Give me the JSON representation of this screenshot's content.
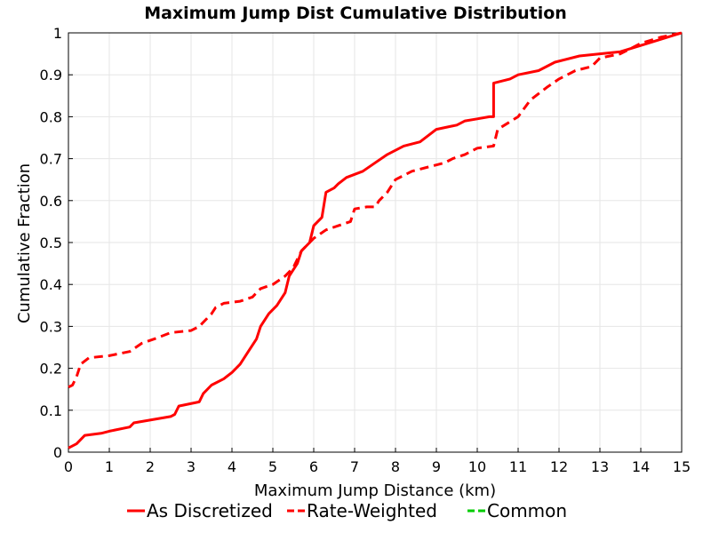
{
  "chart_data": {
    "type": "line",
    "title": "Maximum Jump Dist Cumulative Distribution",
    "xlabel": "Maximum Jump Distance (km)",
    "ylabel": "Cumulative Fraction",
    "xlim": [
      0,
      15
    ],
    "ylim": [
      0,
      1
    ],
    "xticks": [
      "0",
      "1",
      "2",
      "3",
      "4",
      "5",
      "6",
      "7",
      "8",
      "9",
      "10",
      "11",
      "12",
      "13",
      "14",
      "15"
    ],
    "yticks": [
      "0",
      "0.1",
      "0.2",
      "0.3",
      "0.4",
      "0.5",
      "0.6",
      "0.7",
      "0.8",
      "0.9",
      "1"
    ],
    "grid": true,
    "legend_position": "bottom",
    "series": [
      {
        "name": "As Discretized",
        "color": "#ff0000",
        "dash": "solid",
        "points": [
          [
            0.0,
            0.01
          ],
          [
            0.2,
            0.02
          ],
          [
            0.4,
            0.04
          ],
          [
            0.8,
            0.045
          ],
          [
            1.0,
            0.05
          ],
          [
            1.5,
            0.06
          ],
          [
            1.6,
            0.07
          ],
          [
            1.9,
            0.075
          ],
          [
            2.5,
            0.085
          ],
          [
            2.6,
            0.09
          ],
          [
            2.7,
            0.11
          ],
          [
            3.2,
            0.12
          ],
          [
            3.3,
            0.14
          ],
          [
            3.5,
            0.16
          ],
          [
            3.8,
            0.175
          ],
          [
            4.0,
            0.19
          ],
          [
            4.2,
            0.21
          ],
          [
            4.4,
            0.24
          ],
          [
            4.6,
            0.27
          ],
          [
            4.7,
            0.3
          ],
          [
            4.9,
            0.33
          ],
          [
            5.1,
            0.35
          ],
          [
            5.3,
            0.38
          ],
          [
            5.4,
            0.42
          ],
          [
            5.6,
            0.45
          ],
          [
            5.7,
            0.48
          ],
          [
            5.9,
            0.5
          ],
          [
            6.0,
            0.54
          ],
          [
            6.2,
            0.56
          ],
          [
            6.3,
            0.62
          ],
          [
            6.5,
            0.63
          ],
          [
            6.6,
            0.64
          ],
          [
            6.8,
            0.655
          ],
          [
            7.2,
            0.67
          ],
          [
            7.5,
            0.69
          ],
          [
            7.8,
            0.71
          ],
          [
            8.2,
            0.73
          ],
          [
            8.6,
            0.74
          ],
          [
            9.0,
            0.77
          ],
          [
            9.5,
            0.78
          ],
          [
            9.7,
            0.79
          ],
          [
            10.0,
            0.795
          ],
          [
            10.3,
            0.8
          ],
          [
            10.4,
            0.8
          ],
          [
            10.4,
            0.88
          ],
          [
            10.8,
            0.89
          ],
          [
            11.0,
            0.9
          ],
          [
            11.5,
            0.91
          ],
          [
            11.9,
            0.93
          ],
          [
            12.5,
            0.945
          ],
          [
            13.0,
            0.95
          ],
          [
            13.5,
            0.955
          ],
          [
            14.0,
            0.97
          ],
          [
            14.5,
            0.985
          ],
          [
            15.0,
            1.0
          ]
        ]
      },
      {
        "name": "Rate-Weighted",
        "color": "#ff0000",
        "dash": "dashed",
        "points": [
          [
            0.0,
            0.155
          ],
          [
            0.1,
            0.16
          ],
          [
            0.2,
            0.18
          ],
          [
            0.3,
            0.21
          ],
          [
            0.5,
            0.225
          ],
          [
            1.0,
            0.23
          ],
          [
            1.5,
            0.24
          ],
          [
            1.8,
            0.26
          ],
          [
            2.1,
            0.27
          ],
          [
            2.5,
            0.285
          ],
          [
            3.0,
            0.29
          ],
          [
            3.2,
            0.3
          ],
          [
            3.3,
            0.31
          ],
          [
            3.5,
            0.33
          ],
          [
            3.6,
            0.345
          ],
          [
            3.8,
            0.355
          ],
          [
            4.2,
            0.36
          ],
          [
            4.5,
            0.37
          ],
          [
            4.7,
            0.39
          ],
          [
            5.0,
            0.4
          ],
          [
            5.3,
            0.42
          ],
          [
            5.5,
            0.44
          ],
          [
            5.7,
            0.48
          ],
          [
            5.9,
            0.5
          ],
          [
            6.0,
            0.51
          ],
          [
            6.3,
            0.53
          ],
          [
            6.6,
            0.54
          ],
          [
            6.9,
            0.55
          ],
          [
            7.0,
            0.58
          ],
          [
            7.3,
            0.585
          ],
          [
            7.5,
            0.585
          ],
          [
            7.6,
            0.6
          ],
          [
            7.8,
            0.62
          ],
          [
            8.0,
            0.65
          ],
          [
            8.4,
            0.67
          ],
          [
            8.8,
            0.68
          ],
          [
            9.2,
            0.69
          ],
          [
            9.4,
            0.7
          ],
          [
            9.7,
            0.71
          ],
          [
            10.0,
            0.725
          ],
          [
            10.4,
            0.73
          ],
          [
            10.5,
            0.77
          ],
          [
            11.0,
            0.8
          ],
          [
            11.3,
            0.84
          ],
          [
            11.7,
            0.87
          ],
          [
            12.0,
            0.89
          ],
          [
            12.4,
            0.91
          ],
          [
            12.8,
            0.92
          ],
          [
            13.0,
            0.94
          ],
          [
            13.5,
            0.95
          ],
          [
            14.0,
            0.975
          ],
          [
            14.5,
            0.99
          ],
          [
            15.0,
            1.0
          ]
        ]
      },
      {
        "name": "Common",
        "color": "#00cc00",
        "dash": "dashed",
        "points": []
      }
    ]
  }
}
